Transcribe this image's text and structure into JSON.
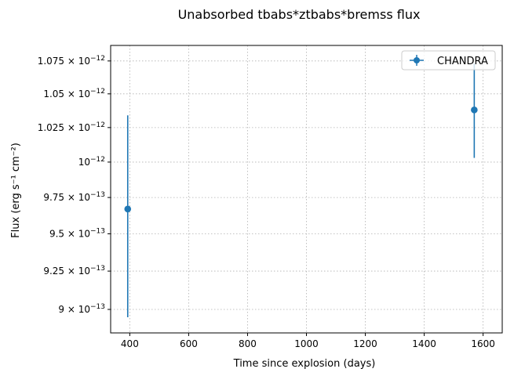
{
  "chart_data": {
    "type": "scatter",
    "title": "Unabsorbed tbabs*ztbabs*bremss flux",
    "xlabel": "Time since explosion (days)",
    "ylabel": "Flux (erg s⁻¹ cm⁻²)",
    "xlim": [
      335,
      1665
    ],
    "ylim": [
      8.85e-13,
      1.087e-12
    ],
    "y_scale": "log",
    "x_ticks": [
      {
        "value": 400,
        "label": "400"
      },
      {
        "value": 600,
        "label": "600"
      },
      {
        "value": 800,
        "label": "800"
      },
      {
        "value": 1000,
        "label": "1000"
      },
      {
        "value": 1200,
        "label": "1200"
      },
      {
        "value": 1400,
        "label": "1400"
      },
      {
        "value": 1600,
        "label": "1600"
      }
    ],
    "y_ticks": [
      {
        "value": 9e-13,
        "mantissa": "9",
        "exp": "−13"
      },
      {
        "value": 9.25e-13,
        "mantissa": "9.25",
        "exp": "−13"
      },
      {
        "value": 9.5e-13,
        "mantissa": "9.5",
        "exp": "−13"
      },
      {
        "value": 9.75e-13,
        "mantissa": "9.75",
        "exp": "−13"
      },
      {
        "value": 1e-12,
        "mantissa": "",
        "exp": "−12"
      },
      {
        "value": 1.025e-12,
        "mantissa": "1.025",
        "exp": "−12"
      },
      {
        "value": 1.05e-12,
        "mantissa": "1.05",
        "exp": "−12"
      },
      {
        "value": 1.075e-12,
        "mantissa": "1.075",
        "exp": "−12"
      }
    ],
    "grid": true,
    "legend_position": "top-right",
    "series": [
      {
        "name": "CHANDRA",
        "color": "#1f77b4",
        "points": [
          {
            "x": 393,
            "y": 9.67e-13,
            "y_low": 8.95e-13,
            "y_high": 1.034e-12
          },
          {
            "x": 1570,
            "y": 1.038e-12,
            "y_low": 1.003e-12,
            "y_high": 1.073e-12
          }
        ]
      }
    ]
  }
}
